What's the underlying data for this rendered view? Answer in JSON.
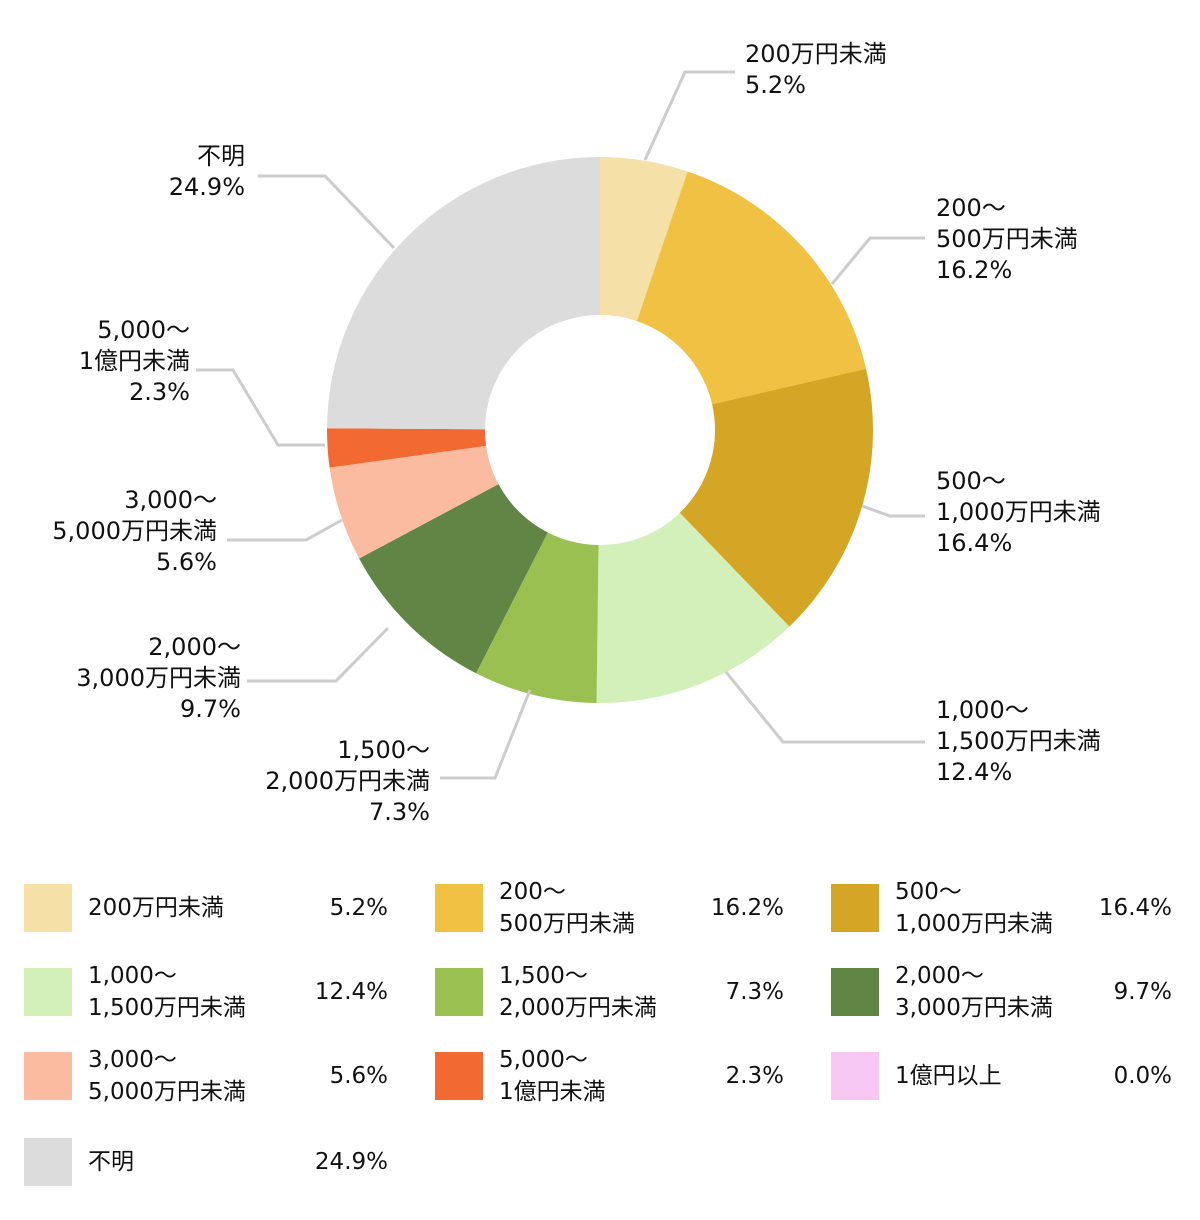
{
  "chart_data": {
    "type": "pie",
    "donut": true,
    "slices": [
      {
        "label": "200万円未満",
        "value": 5.2,
        "value_label": "5.2%",
        "color": "#F5E0A8"
      },
      {
        "label": "200〜\n500万円未満",
        "value": 16.2,
        "value_label": "16.2%",
        "color": "#F0C142"
      },
      {
        "label": "500〜\n1,000万円未満",
        "value": 16.4,
        "value_label": "16.4%",
        "color": "#D5A626"
      },
      {
        "label": "1,000〜\n1,500万円未満",
        "value": 12.4,
        "value_label": "12.4%",
        "color": "#D4F0BA"
      },
      {
        "label": "1,500〜\n2,000万円未満",
        "value": 7.3,
        "value_label": "7.3%",
        "color": "#9BC052"
      },
      {
        "label": "2,000〜\n3,000万円未満",
        "value": 9.7,
        "value_label": "9.7%",
        "color": "#608545"
      },
      {
        "label": "3,000〜\n5,000万円未満",
        "value": 5.6,
        "value_label": "5.6%",
        "color": "#FBBBA0"
      },
      {
        "label": "5,000〜\n1億円未満",
        "value": 2.3,
        "value_label": "2.3%",
        "color": "#F26A32"
      },
      {
        "label": "1億円以上",
        "value": 0.0,
        "value_label": "0.0%",
        "color": "#F8C8F5"
      },
      {
        "label": "不明",
        "value": 24.9,
        "value_label": "24.9%",
        "color": "#DCDCDC"
      }
    ],
    "legend_placement": "bottom"
  },
  "leader_line_color": "#CCCCCC"
}
